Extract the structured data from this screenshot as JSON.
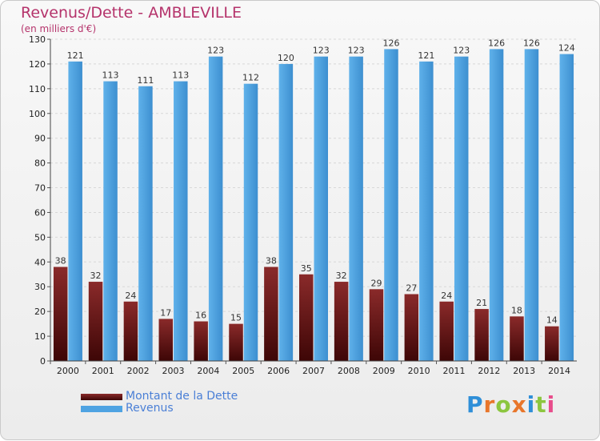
{
  "chart_data": {
    "type": "bar",
    "title": "Revenus/Dette - AMBLEVILLE",
    "subtitle": "(en milliers d'€)",
    "categories": [
      "2000",
      "2001",
      "2002",
      "2003",
      "2004",
      "2005",
      "2006",
      "2007",
      "2008",
      "2009",
      "2010",
      "2011",
      "2012",
      "2013",
      "2014"
    ],
    "series": [
      {
        "name": "Montant de la Dette",
        "color": "#7a1a1a",
        "values": [
          38,
          32,
          24,
          17,
          16,
          15,
          38,
          35,
          32,
          29,
          27,
          24,
          21,
          18,
          14
        ]
      },
      {
        "name": "Revenus",
        "color": "#4fa3e2",
        "values": [
          121,
          113,
          111,
          113,
          123,
          112,
          120,
          123,
          123,
          126,
          121,
          123,
          126,
          126,
          124
        ]
      }
    ],
    "ylim": [
      0,
      130
    ],
    "yticks": [
      0,
      10,
      20,
      30,
      40,
      50,
      60,
      70,
      80,
      90,
      100,
      110,
      120,
      130
    ],
    "grid": true,
    "legend_position": "bottom-left"
  },
  "logo": {
    "text": "Proxiti",
    "letter_colors": [
      "#2f8fd8",
      "#e8762b",
      "#8cc63f",
      "#e8762b",
      "#2f8fd8",
      "#8cc63f",
      "#e84c8b"
    ]
  }
}
